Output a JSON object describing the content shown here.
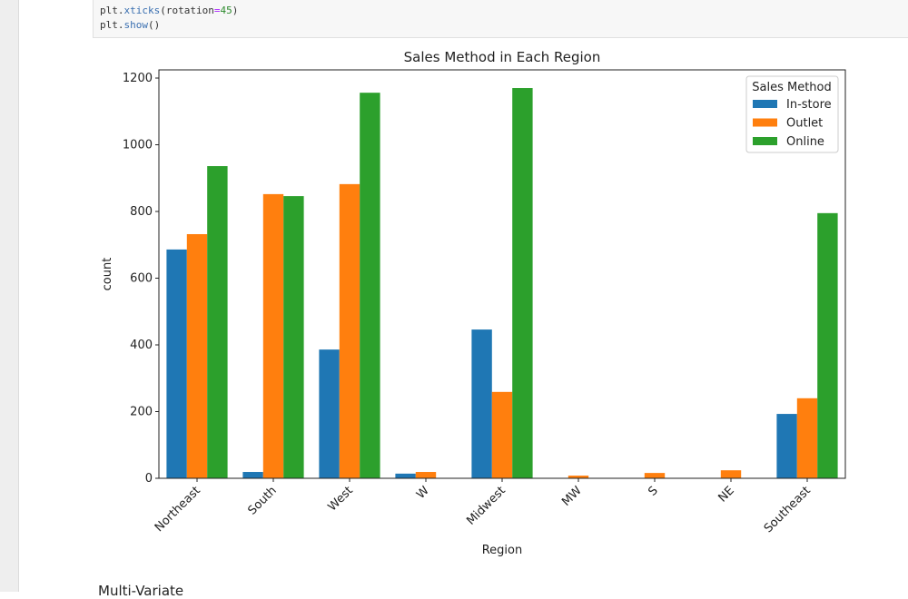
{
  "code": {
    "line1": {
      "obj": "plt.",
      "fn": "xticks",
      "open": "(rotation",
      "eq": "=",
      "num": "45",
      "close": ")"
    },
    "line2": {
      "obj": "plt.",
      "fn": "show",
      "call": "()"
    }
  },
  "markdown_heading": "Multi-Variate",
  "chart_data": {
    "type": "bar",
    "title": "Sales Method in Each Region",
    "xlabel": "Region",
    "ylabel": "count",
    "ylim": [
      0,
      1225
    ],
    "yticks": [
      0,
      200,
      400,
      600,
      800,
      1000,
      1200
    ],
    "categories": [
      "Northeast",
      "South",
      "West",
      "W",
      "Midwest",
      "MW",
      "S",
      "NE",
      "Southeast"
    ],
    "legend": {
      "title": "Sales Method",
      "position": "top-right"
    },
    "series": [
      {
        "name": "In-store",
        "color": "#1f77b4",
        "values": [
          686,
          19,
          386,
          14,
          446,
          0,
          0,
          0,
          193
        ]
      },
      {
        "name": "Outlet",
        "color": "#ff7f0e",
        "values": [
          732,
          852,
          882,
          19,
          259,
          8,
          16,
          24,
          240
        ]
      },
      {
        "name": "Online",
        "color": "#2ca02c",
        "values": [
          936,
          846,
          1156,
          0,
          1170,
          0,
          0,
          0,
          795
        ]
      }
    ],
    "grid": false
  }
}
